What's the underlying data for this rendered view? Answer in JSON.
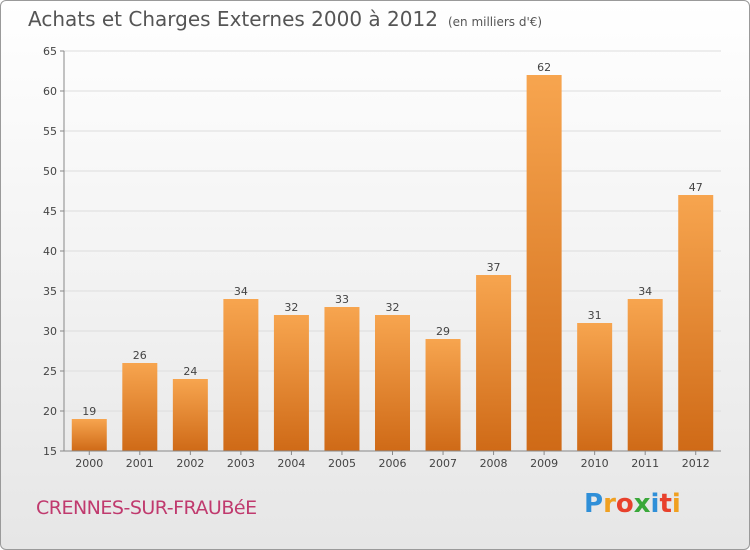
{
  "header": {
    "title": "Achats et Charges Externes 2000 à 2012",
    "unit": "(en milliers d'€)"
  },
  "footer": {
    "commune": "CRENNES-SUR-FRAUBéE",
    "logo_letters": [
      {
        "ch": "P",
        "color": "#2f8fd8"
      },
      {
        "ch": "r",
        "color": "#f0a020"
      },
      {
        "ch": "o",
        "color": "#e8412c"
      },
      {
        "ch": "x",
        "color": "#3aa83a"
      },
      {
        "ch": "i",
        "color": "#2f8fd8"
      },
      {
        "ch": "t",
        "color": "#e8412c"
      },
      {
        "ch": "i",
        "color": "#f0a020"
      }
    ]
  },
  "chart_data": {
    "type": "bar",
    "title": "Achats et Charges Externes 2000 à 2012",
    "subtitle": "(en milliers d'€)",
    "categories": [
      "2000",
      "2001",
      "2002",
      "2003",
      "2004",
      "2005",
      "2006",
      "2007",
      "2008",
      "2009",
      "2010",
      "2011",
      "2012"
    ],
    "values": [
      19,
      26,
      24,
      34,
      32,
      33,
      32,
      29,
      37,
      62,
      31,
      34,
      47
    ],
    "ylim": [
      15,
      65
    ],
    "yticks": [
      15,
      20,
      25,
      30,
      35,
      40,
      45,
      50,
      55,
      60,
      65
    ],
    "grid": true,
    "bar_color_top": "#f7a54f",
    "bar_color_bottom": "#cf6a17"
  }
}
